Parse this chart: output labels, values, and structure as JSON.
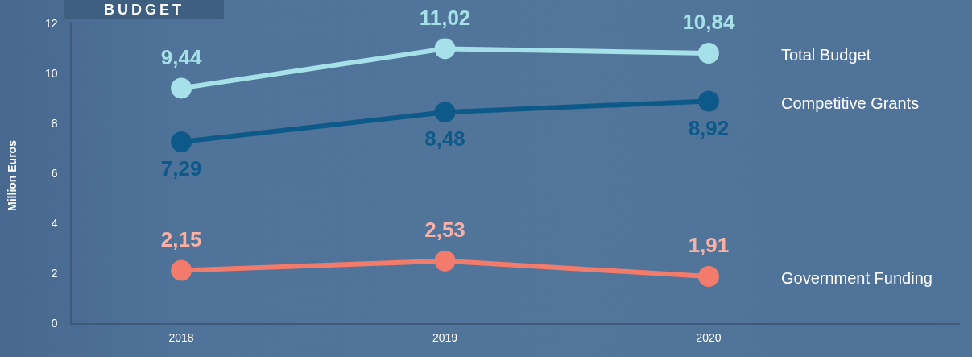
{
  "chart_data": {
    "type": "line",
    "title": "BUDGET",
    "ylabel": "Million Euros",
    "categories": [
      "2018",
      "2019",
      "2020"
    ],
    "series": [
      {
        "name": "Total Budget",
        "color": "#a6e0e8",
        "values": [
          9.44,
          11.02,
          10.84
        ],
        "value_labels": [
          "9,44",
          "11,02",
          "10,84"
        ]
      },
      {
        "name": "Competitive Grants",
        "color": "#0d5a8a",
        "values": [
          7.29,
          8.48,
          8.92
        ],
        "value_labels": [
          "7,29",
          "8,48",
          "8,92"
        ]
      },
      {
        "name": "Government Funding",
        "color": "#f27b6b",
        "values": [
          2.15,
          2.53,
          1.91
        ],
        "value_labels": [
          "2,15",
          "2,53",
          "1,91"
        ]
      }
    ],
    "ylim": [
      0,
      12
    ],
    "yticks": [
      0,
      2,
      4,
      6,
      8,
      10,
      12
    ],
    "grid": false,
    "marker": "circle",
    "line_style": "solid"
  }
}
